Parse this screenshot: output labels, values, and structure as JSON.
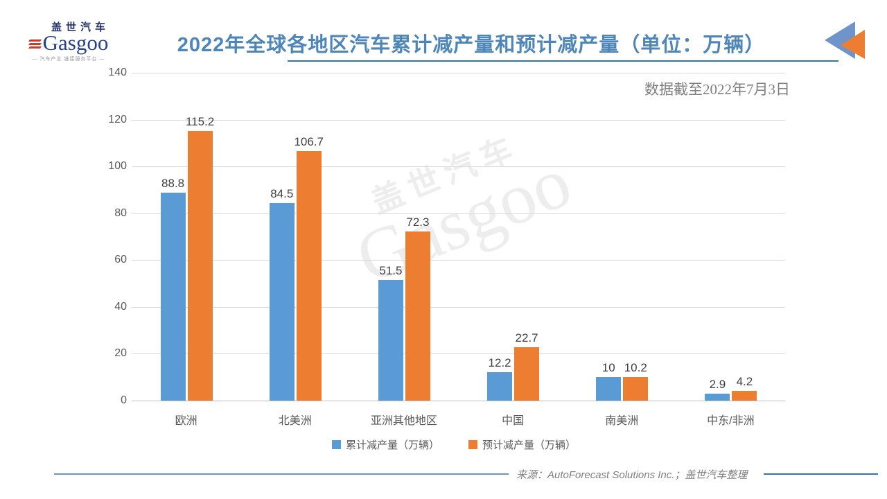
{
  "header": {
    "logo": {
      "cn": "盖世汽车",
      "en": "Gasgoo",
      "tagline": "— 汽车产业 链接服务平台 —"
    },
    "title": "2022年全球各地区汽车累计减产量和预计减产量（单位：万辆）",
    "corner_icon": "double-left-triangles",
    "accent_blue": "#4e86b8"
  },
  "chart_data": {
    "type": "bar",
    "title": "2022年全球各地区汽车累计减产量和预计减产量（单位：万辆）",
    "subtitle": "数据截至2022年7月3日",
    "categories": [
      "欧洲",
      "北美洲",
      "亚洲其他地区",
      "中国",
      "南美洲",
      "中东/非洲"
    ],
    "series": [
      {
        "name": "累计减产量（万辆）",
        "color": "#5B9BD5",
        "values": [
          88.8,
          84.5,
          51.5,
          12.2,
          10,
          2.9
        ]
      },
      {
        "name": "预计减产量（万辆）",
        "color": "#ED7D31",
        "values": [
          115.2,
          106.7,
          72.3,
          22.7,
          10.2,
          4.2
        ]
      }
    ],
    "ylabel": "",
    "xlabel": "",
    "ylim": [
      0,
      140
    ],
    "ytick_step": 20,
    "grid": true,
    "gridline_color": "#d9d9d9",
    "legend_position": "bottom",
    "watermark_cn": "盖世汽车",
    "watermark_en": "Gasgoo"
  },
  "footer": {
    "source": "来源：AutoForecast Solutions Inc.；盖世汽车整理"
  }
}
